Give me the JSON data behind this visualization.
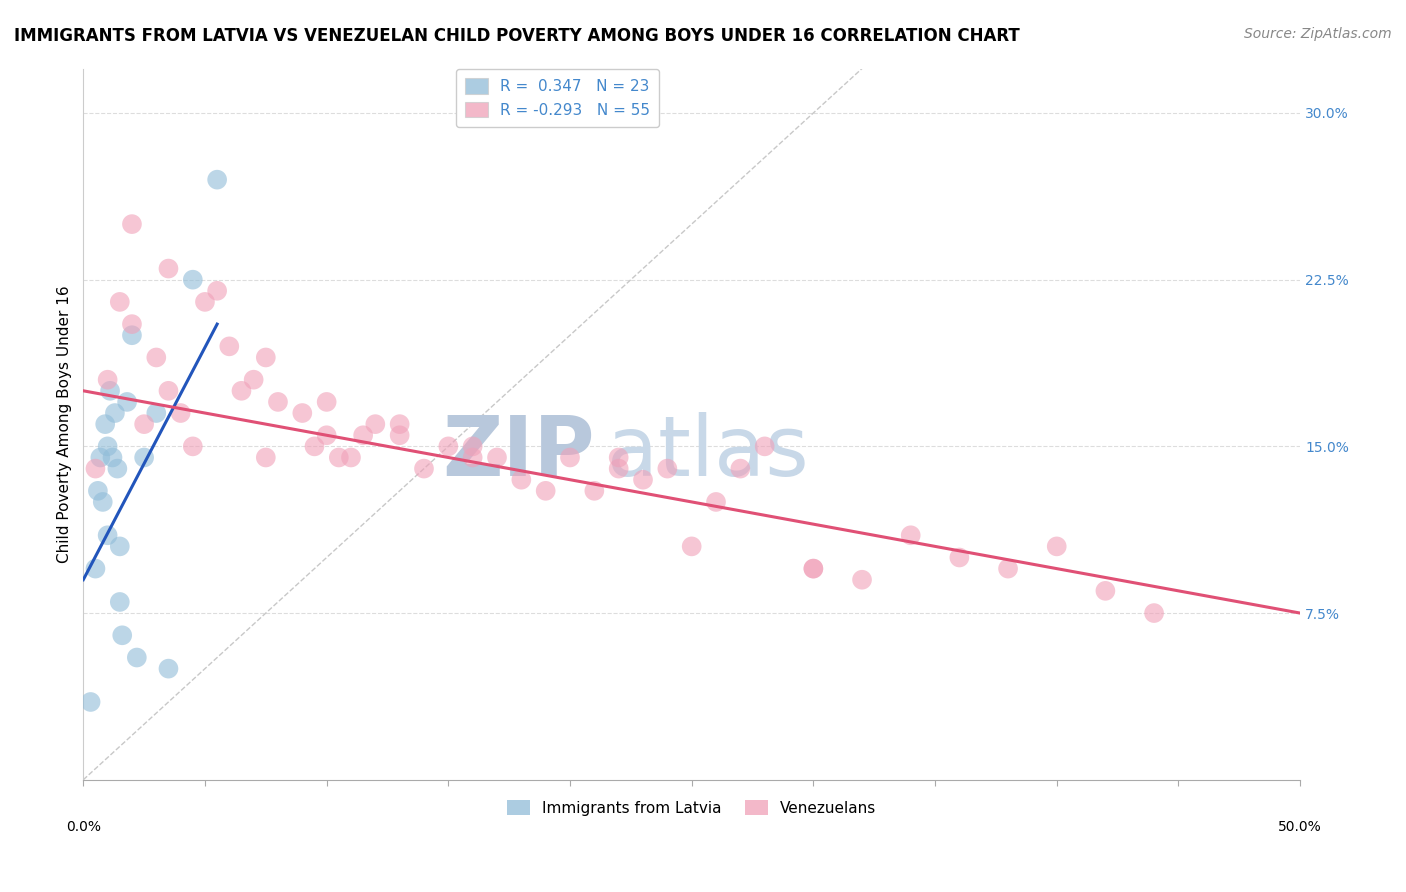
{
  "title": "IMMIGRANTS FROM LATVIA VS VENEZUELAN CHILD POVERTY AMONG BOYS UNDER 16 CORRELATION CHART",
  "source": "Source: ZipAtlas.com",
  "ylabel": "Child Poverty Among Boys Under 16",
  "legend_entries": [
    {
      "label": "Immigrants from Latvia",
      "color": "#a8c4e0",
      "R": "0.347",
      "N": "23"
    },
    {
      "label": "Venezuelans",
      "color": "#f4a8b8",
      "R": "-0.293",
      "N": "55"
    }
  ],
  "xlim": [
    0.0,
    50.0
  ],
  "ylim": [
    0.0,
    32.0
  ],
  "y_ticks_right": [
    7.5,
    15.0,
    22.5,
    30.0
  ],
  "background_color": "#ffffff",
  "grid_color": "#dddddd",
  "watermark": "ZIPatlas",
  "watermark_color": "#ccd9ee",
  "blue_scatter_x": [
    0.3,
    0.5,
    0.6,
    0.7,
    0.8,
    0.9,
    1.0,
    1.0,
    1.1,
    1.2,
    1.3,
    1.4,
    1.5,
    1.5,
    1.6,
    1.8,
    2.0,
    2.2,
    2.5,
    3.0,
    3.5,
    4.5,
    5.5
  ],
  "blue_scatter_y": [
    3.5,
    9.5,
    13.0,
    14.5,
    12.5,
    16.0,
    11.0,
    15.0,
    17.5,
    14.5,
    16.5,
    14.0,
    10.5,
    8.0,
    6.5,
    17.0,
    20.0,
    5.5,
    14.5,
    16.5,
    5.0,
    22.5,
    27.0
  ],
  "pink_scatter_x": [
    0.5,
    1.0,
    1.5,
    2.0,
    2.5,
    3.0,
    3.5,
    4.0,
    4.5,
    5.0,
    6.0,
    6.5,
    7.0,
    7.5,
    8.0,
    9.0,
    9.5,
    10.0,
    10.5,
    11.0,
    11.5,
    12.0,
    13.0,
    14.0,
    15.0,
    16.0,
    17.0,
    18.0,
    19.0,
    20.0,
    21.0,
    22.0,
    23.0,
    24.0,
    25.0,
    26.0,
    27.0,
    28.0,
    30.0,
    32.0,
    34.0,
    36.0,
    38.0,
    40.0,
    42.0,
    44.0,
    2.0,
    3.5,
    5.5,
    7.5,
    10.0,
    13.0,
    16.0,
    22.0,
    30.0
  ],
  "pink_scatter_y": [
    14.0,
    18.0,
    21.5,
    20.5,
    16.0,
    19.0,
    17.5,
    16.5,
    15.0,
    21.5,
    19.5,
    17.5,
    18.0,
    14.5,
    17.0,
    16.5,
    15.0,
    15.5,
    14.5,
    14.5,
    15.5,
    16.0,
    16.0,
    14.0,
    15.0,
    14.5,
    14.5,
    13.5,
    13.0,
    14.5,
    13.0,
    14.5,
    13.5,
    14.0,
    10.5,
    12.5,
    14.0,
    15.0,
    9.5,
    9.0,
    11.0,
    10.0,
    9.5,
    10.5,
    8.5,
    7.5,
    25.0,
    23.0,
    22.0,
    19.0,
    17.0,
    15.5,
    15.0,
    14.0,
    9.5
  ],
  "blue_line_x": [
    0.0,
    5.5
  ],
  "blue_line_y": [
    9.0,
    20.5
  ],
  "pink_line_x": [
    0.0,
    50.0
  ],
  "pink_line_y": [
    17.5,
    7.5
  ],
  "ref_line_x": [
    0.0,
    32.0
  ],
  "ref_line_y": [
    0.0,
    32.0
  ],
  "blue_color": "#90bcd8",
  "pink_color": "#f0a0b8",
  "blue_line_color": "#2255bb",
  "pink_line_color": "#e05075",
  "ref_line_color": "#c8c8c8",
  "right_axis_color": "#4488cc",
  "title_fontsize": 12,
  "source_fontsize": 10,
  "watermark_fontsize": 60,
  "legend_fontsize": 11,
  "tick_label_fontsize": 10,
  "ylabel_fontsize": 11
}
